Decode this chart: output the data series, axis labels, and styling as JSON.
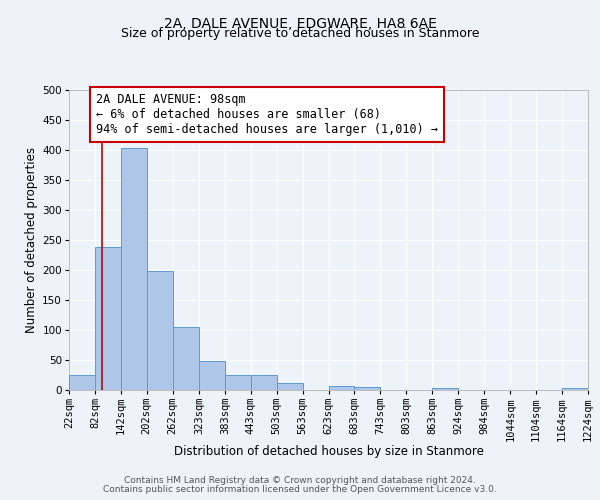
{
  "title": "2A, DALE AVENUE, EDGWARE, HA8 6AE",
  "subtitle": "Size of property relative to detached houses in Stanmore",
  "xlabel": "Distribution of detached houses by size in Stanmore",
  "ylabel": "Number of detached properties",
  "bin_edges": [
    22,
    82,
    142,
    202,
    262,
    323,
    383,
    443,
    503,
    563,
    623,
    683,
    743,
    803,
    863,
    924,
    984,
    1044,
    1104,
    1164,
    1224
  ],
  "bin_labels": [
    "22sqm",
    "82sqm",
    "142sqm",
    "202sqm",
    "262sqm",
    "323sqm",
    "383sqm",
    "443sqm",
    "503sqm",
    "563sqm",
    "623sqm",
    "683sqm",
    "743sqm",
    "803sqm",
    "863sqm",
    "924sqm",
    "984sqm",
    "1044sqm",
    "1104sqm",
    "1164sqm",
    "1224sqm"
  ],
  "bar_heights": [
    25,
    238,
    403,
    199,
    105,
    48,
    25,
    25,
    12,
    0,
    7,
    5,
    0,
    0,
    3,
    0,
    0,
    0,
    0,
    3
  ],
  "bar_color": "#aec6e8",
  "bar_edge_color": "#5b9bd5",
  "property_line_x": 98,
  "property_line_color": "#cc0000",
  "annotation_text": "2A DALE AVENUE: 98sqm\n← 6% of detached houses are smaller (68)\n94% of semi-detached houses are larger (1,010) →",
  "annotation_box_color": "#ffffff",
  "annotation_box_edge_color": "#cc0000",
  "ylim": [
    0,
    500
  ],
  "yticks": [
    0,
    50,
    100,
    150,
    200,
    250,
    300,
    350,
    400,
    450,
    500
  ],
  "footer_line1": "Contains HM Land Registry data © Crown copyright and database right 2024.",
  "footer_line2": "Contains public sector information licensed under the Open Government Licence v3.0.",
  "background_color": "#eef2f9",
  "grid_color": "#ffffff",
  "title_fontsize": 10,
  "subtitle_fontsize": 9,
  "axis_label_fontsize": 8.5,
  "tick_fontsize": 7.5,
  "annotation_fontsize": 8.5,
  "footer_fontsize": 6.5
}
